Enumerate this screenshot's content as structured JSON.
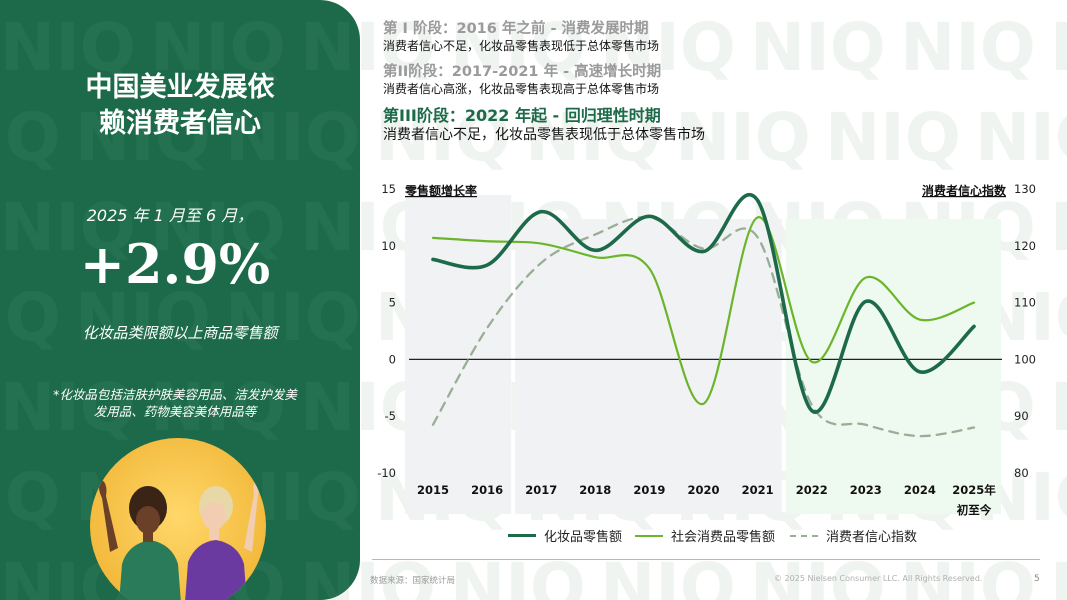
{
  "watermark": {
    "text": "NIQ"
  },
  "left_panel": {
    "title_line1": "中国美业发展依",
    "title_line2": "赖消费者信心",
    "period": "2025 年 1 月至 6 月，",
    "big_value": "+2.9%",
    "category": "化妆品类限额以上商品零售额",
    "note_line1": "*化妆品包括洁肤护肤美容用品、洁发护发美",
    "note_line2": "发用品、药物美容美体用品等"
  },
  "phases": [
    {
      "title": "第 I 阶段：2016 年之前 - 消费发展时期",
      "desc": "消费者信心不足，化妆品零售表现低于总体零售市场",
      "active": false
    },
    {
      "title": "第II阶段：2017-2021 年 - 高速增长时期",
      "desc": "消费者信心高涨，化妆品零售表现高于总体零售市场",
      "active": false
    },
    {
      "title": "第III阶段：2022 年起 - 回归理性时期",
      "desc": "消费者信心不足，化妆品零售表现低于总体零售市场",
      "active": true
    }
  ],
  "chart_data": {
    "type": "line",
    "left_axis_label": "零售额增长率",
    "right_axis_label": "消费者信心指数",
    "categories": [
      "2015",
      "2016",
      "2017",
      "2018",
      "2019",
      "2020",
      "2021",
      "2022",
      "2023",
      "2024",
      "2025年初至今"
    ],
    "y_left": {
      "min": -10,
      "max": 15,
      "ticks": [
        15,
        10,
        5,
        0,
        -5,
        -10
      ]
    },
    "y_right": {
      "min": 80,
      "max": 130,
      "ticks": [
        130,
        120,
        110,
        100,
        90,
        80
      ]
    },
    "series": [
      {
        "name": "化妆品零售额",
        "axis": "left",
        "color": "#1d6a4a",
        "style": "solid",
        "values": [
          8.8,
          8.3,
          13.0,
          9.6,
          12.6,
          9.5,
          14.0,
          -4.5,
          5.1,
          -1.1,
          2.9
        ]
      },
      {
        "name": "社会消费品零售额",
        "axis": "left",
        "color": "#6bb52a",
        "style": "solid",
        "values": [
          10.7,
          10.4,
          10.2,
          9.0,
          8.0,
          -3.9,
          12.5,
          -0.2,
          7.2,
          3.5,
          5.0
        ]
      },
      {
        "name": "消费者信心指数",
        "axis": "right",
        "color": "#9aae96",
        "style": "dashed",
        "values": [
          88.5,
          105.5,
          117.0,
          122.0,
          125.0,
          119.5,
          121.5,
          92.0,
          88.5,
          86.5,
          88.0
        ]
      }
    ]
  },
  "footer": {
    "source": "数据来源：国家统计局",
    "copyright": "© 2025 Nielsen Consumer LLC. All Rights Reserved.",
    "page": "5"
  }
}
